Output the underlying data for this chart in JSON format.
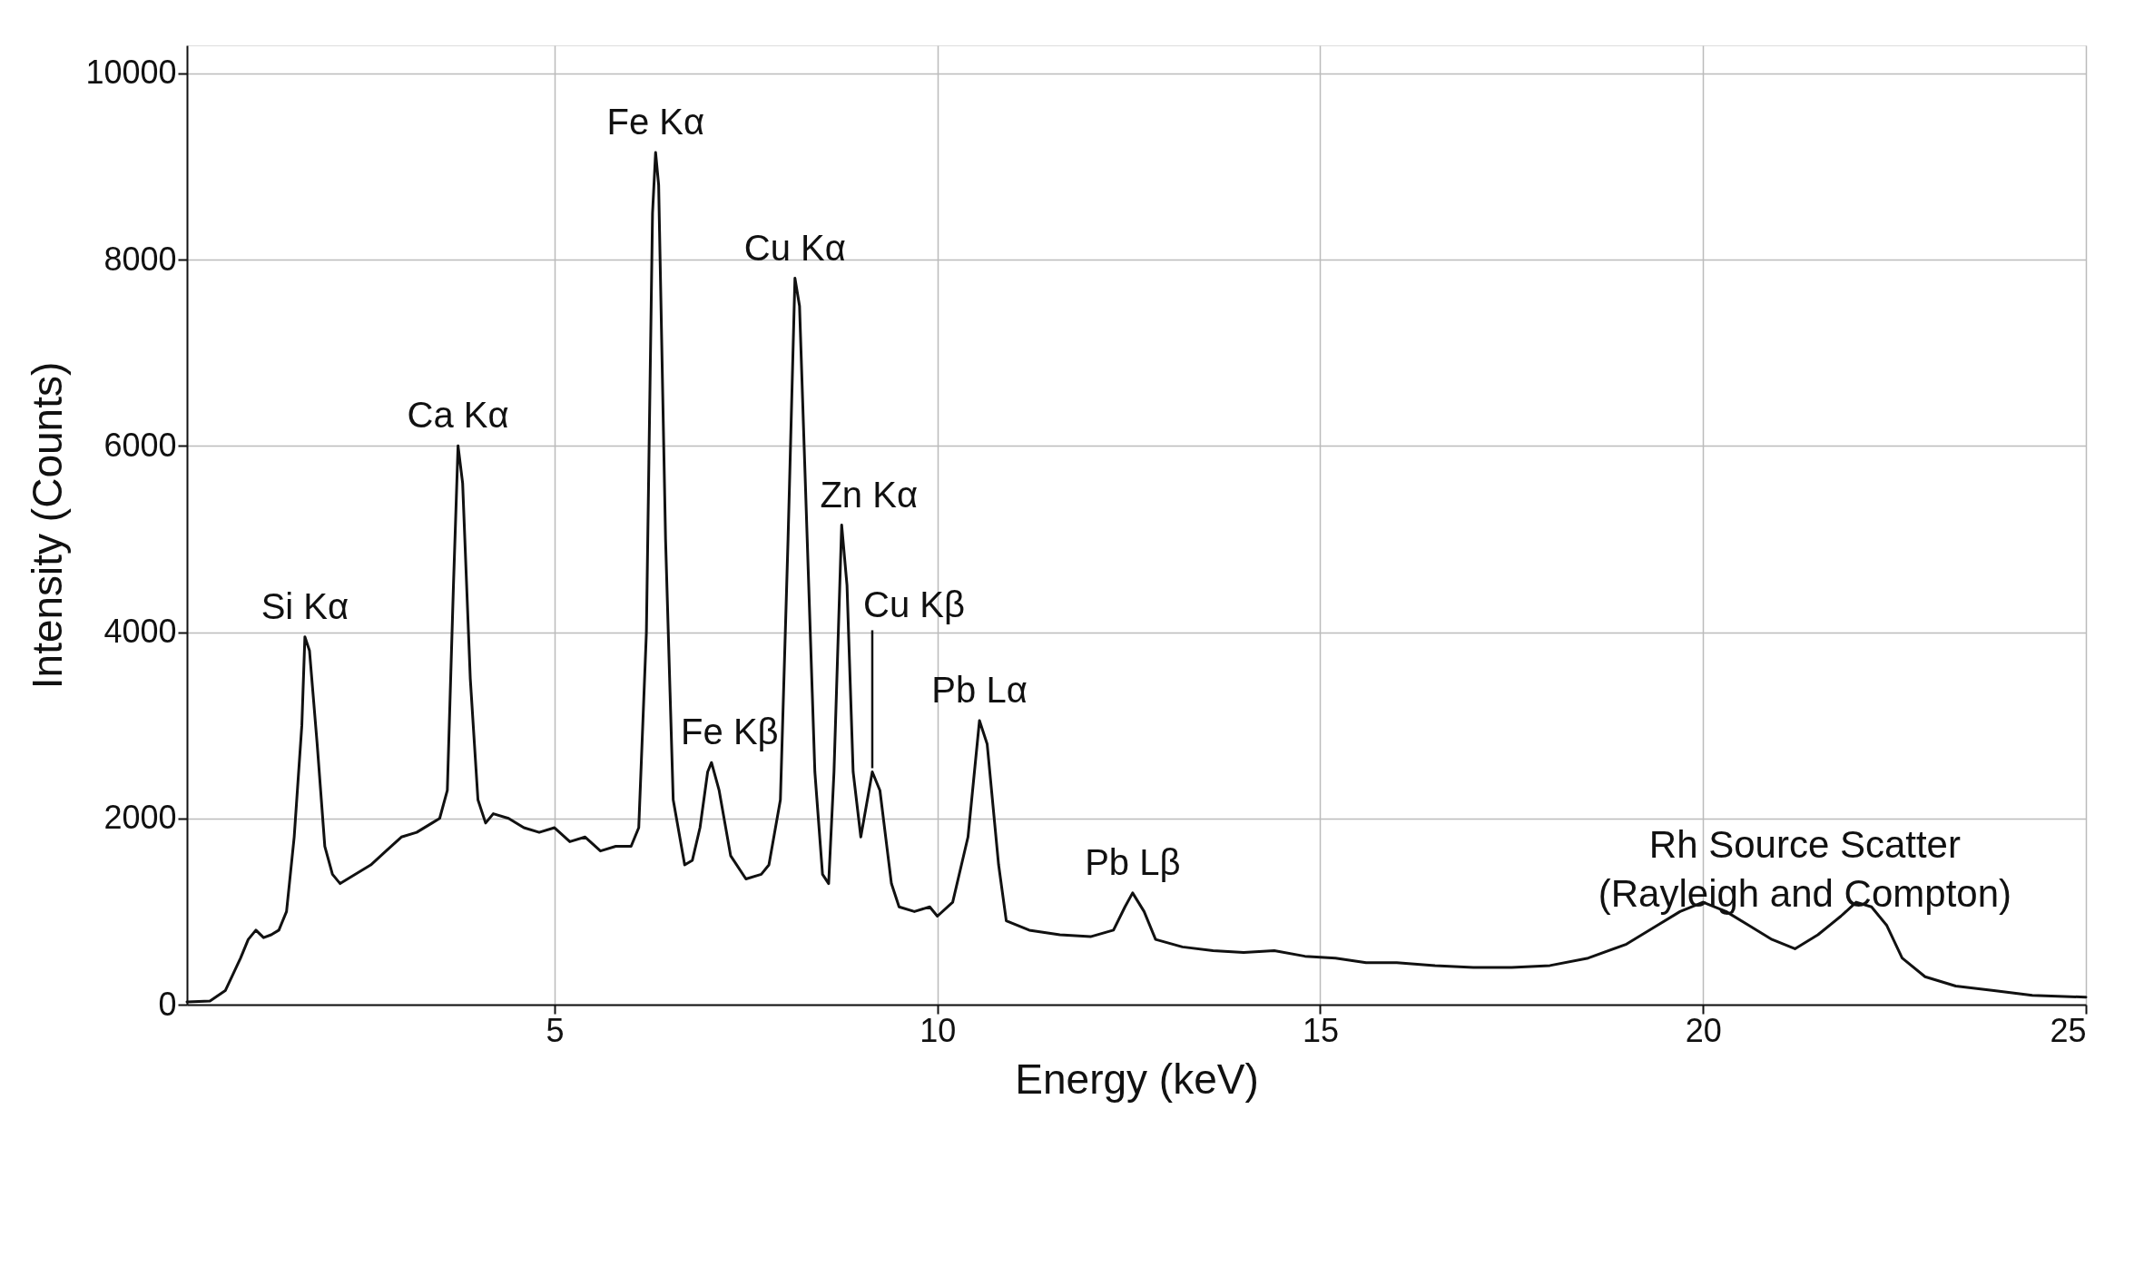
{
  "chart_data": {
    "type": "line",
    "xlabel": "Energy (keV)",
    "ylabel": "Intensity (Counts)",
    "xlim": [
      0.2,
      25
    ],
    "xticks": [
      5,
      10,
      15,
      20,
      25
    ],
    "ylim": [
      0,
      10300
    ],
    "yticks": [
      0,
      2000,
      4000,
      6000,
      8000,
      10000
    ],
    "grid": true,
    "marker": "none",
    "line_style": "solid",
    "series": [
      {
        "color": "#111111",
        "x": [
          0.2,
          0.5,
          0.7,
          0.9,
          1.0,
          1.1,
          1.2,
          1.3,
          1.4,
          1.5,
          1.6,
          1.7,
          1.74,
          1.8,
          1.9,
          2.0,
          2.1,
          2.2,
          2.4,
          2.6,
          2.8,
          3.0,
          3.2,
          3.4,
          3.5,
          3.6,
          3.68,
          3.74,
          3.8,
          3.9,
          4.0,
          4.1,
          4.2,
          4.4,
          4.6,
          4.8,
          5.0,
          5.2,
          5.4,
          5.6,
          5.8,
          6.0,
          6.1,
          6.2,
          6.28,
          6.32,
          6.36,
          6.45,
          6.55,
          6.7,
          6.8,
          6.9,
          7.0,
          7.05,
          7.15,
          7.3,
          7.5,
          7.7,
          7.8,
          7.95,
          8.05,
          8.14,
          8.2,
          8.3,
          8.4,
          8.5,
          8.58,
          8.65,
          8.75,
          8.82,
          8.9,
          9.0,
          9.15,
          9.25,
          9.4,
          9.5,
          9.7,
          9.9,
          10.0,
          10.2,
          10.4,
          10.55,
          10.65,
          10.8,
          10.9,
          11.2,
          11.6,
          12.0,
          12.3,
          12.45,
          12.55,
          12.7,
          12.85,
          13.2,
          13.6,
          14.0,
          14.4,
          14.8,
          15.2,
          15.6,
          16.0,
          16.5,
          17.0,
          17.5,
          18.0,
          18.5,
          19.0,
          19.4,
          19.7,
          20.0,
          20.3,
          20.6,
          20.9,
          21.2,
          21.5,
          21.8,
          22.0,
          22.2,
          22.4,
          22.6,
          22.9,
          23.3,
          23.8,
          24.3,
          25
        ],
        "values": [
          30,
          40,
          150,
          500,
          700,
          800,
          720,
          750,
          800,
          1000,
          1800,
          3000,
          3950,
          3800,
          2800,
          1700,
          1400,
          1300,
          1400,
          1500,
          1650,
          1800,
          1850,
          1950,
          2000,
          2300,
          4500,
          6000,
          5600,
          3500,
          2200,
          1950,
          2050,
          2000,
          1900,
          1850,
          1900,
          1750,
          1800,
          1650,
          1700,
          1700,
          1900,
          4000,
          8500,
          9150,
          8800,
          5000,
          2200,
          1500,
          1550,
          1900,
          2500,
          2600,
          2300,
          1600,
          1350,
          1400,
          1500,
          2200,
          5000,
          7800,
          7500,
          5000,
          2500,
          1400,
          1300,
          2500,
          5150,
          4500,
          2500,
          1800,
          2500,
          2300,
          1300,
          1050,
          1000,
          1050,
          950,
          1100,
          1800,
          3050,
          2800,
          1500,
          900,
          800,
          750,
          730,
          800,
          1050,
          1200,
          1000,
          700,
          620,
          580,
          560,
          580,
          520,
          500,
          450,
          450,
          420,
          400,
          400,
          420,
          500,
          650,
          850,
          1000,
          1100,
          1000,
          850,
          700,
          600,
          750,
          950,
          1100,
          1050,
          850,
          500,
          300,
          200,
          150,
          100,
          80
        ]
      }
    ],
    "annotations": [
      {
        "text": "Si Kα",
        "x": 1.74,
        "y": 3950
      },
      {
        "text": "Ca Kα",
        "x": 3.74,
        "y": 6000
      },
      {
        "text": "Fe Kα",
        "x": 6.32,
        "y": 9150
      },
      {
        "text": "Fe Kβ",
        "x": 7.05,
        "y": 2600
      },
      {
        "text": "Cu Kα",
        "x": 8.14,
        "y": 7800
      },
      {
        "text": "Zn Kα",
        "x": 8.75,
        "y": 5150
      },
      {
        "text": "Cu Kβ",
        "x": 9.15,
        "y": 2500
      },
      {
        "text": "Pb Lα",
        "x": 10.55,
        "y": 3050
      },
      {
        "text": "Pb Lβ",
        "x": 12.55,
        "y": 1200
      },
      "Rh Source Scatter\n(Rayleigh and Compton)"
    ]
  }
}
